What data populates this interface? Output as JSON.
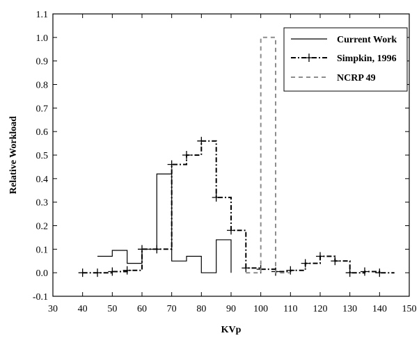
{
  "chart_data": {
    "type": "line",
    "xlabel": "KVp",
    "ylabel": "Relative Workload",
    "xlim": [
      30,
      150
    ],
    "ylim": [
      -0.1,
      1.1
    ],
    "xticks": [
      30,
      40,
      50,
      60,
      70,
      80,
      90,
      100,
      110,
      120,
      130,
      140,
      150
    ],
    "yticks": [
      -0.1,
      0.0,
      0.1,
      0.2,
      0.3,
      0.4,
      0.5,
      0.6,
      0.7,
      0.8,
      0.9,
      1.0,
      1.1
    ],
    "xtick_labels": [
      "30",
      "40",
      "50",
      "60",
      "70",
      "80",
      "90",
      "100",
      "110",
      "120",
      "130",
      "140",
      "150"
    ],
    "ytick_labels": [
      "-0.1",
      "0.0",
      "0.1",
      "0.2",
      "0.3",
      "0.4",
      "0.5",
      "0.6",
      "0.7",
      "0.8",
      "0.9",
      "1.0",
      "1.1"
    ],
    "grid": false,
    "legend_position": "top-right",
    "series": [
      {
        "name": "Current Work",
        "style": "solid",
        "color": "#000000",
        "step": true,
        "bins": [
          [
            45,
            50,
            0.07
          ],
          [
            50,
            55,
            0.095
          ],
          [
            55,
            60,
            0.04
          ],
          [
            60,
            65,
            0.1
          ],
          [
            65,
            70,
            0.42
          ],
          [
            70,
            75,
            0.05
          ],
          [
            75,
            80,
            0.07
          ],
          [
            80,
            85,
            0.0
          ],
          [
            85,
            90,
            0.14
          ]
        ],
        "end": [
          90,
          0.0
        ]
      },
      {
        "name": "Simpkin, 1996",
        "style": "dashdot-plus",
        "color": "#000000",
        "step": true,
        "bins": [
          [
            40,
            45,
            0.0
          ],
          [
            45,
            50,
            0.0
          ],
          [
            50,
            55,
            0.005
          ],
          [
            55,
            60,
            0.01
          ],
          [
            60,
            65,
            0.1
          ],
          [
            65,
            70,
            0.1
          ],
          [
            70,
            75,
            0.46
          ],
          [
            75,
            80,
            0.5
          ],
          [
            80,
            85,
            0.56
          ],
          [
            85,
            90,
            0.32
          ],
          [
            90,
            95,
            0.18
          ],
          [
            95,
            100,
            0.02
          ],
          [
            100,
            105,
            0.015
          ],
          [
            105,
            110,
            0.005
          ],
          [
            110,
            115,
            0.01
          ],
          [
            115,
            120,
            0.04
          ],
          [
            120,
            125,
            0.07
          ],
          [
            125,
            130,
            0.05
          ],
          [
            130,
            135,
            0.0
          ],
          [
            135,
            140,
            0.005
          ],
          [
            140,
            145,
            0.0
          ]
        ],
        "markers": [
          [
            40,
            0.0
          ],
          [
            45,
            0.0
          ],
          [
            50,
            0.005
          ],
          [
            55,
            0.01
          ],
          [
            60,
            0.1
          ],
          [
            65,
            0.1
          ],
          [
            70,
            0.46
          ],
          [
            75,
            0.5
          ],
          [
            80,
            0.56
          ],
          [
            85,
            0.32
          ],
          [
            90,
            0.18
          ],
          [
            95,
            0.02
          ],
          [
            100,
            0.015
          ],
          [
            105,
            0.005
          ],
          [
            110,
            0.01
          ],
          [
            115,
            0.04
          ],
          [
            120,
            0.07
          ],
          [
            125,
            0.05
          ],
          [
            130,
            0.0
          ],
          [
            135,
            0.005
          ],
          [
            140,
            0.0
          ]
        ]
      },
      {
        "name": "NCRP 49",
        "style": "dashed",
        "color": "#8c8c8c",
        "step": true,
        "bins": [
          [
            95,
            100,
            0.0
          ],
          [
            100,
            105,
            1.0
          ],
          [
            105,
            110,
            0.0
          ]
        ]
      }
    ]
  }
}
